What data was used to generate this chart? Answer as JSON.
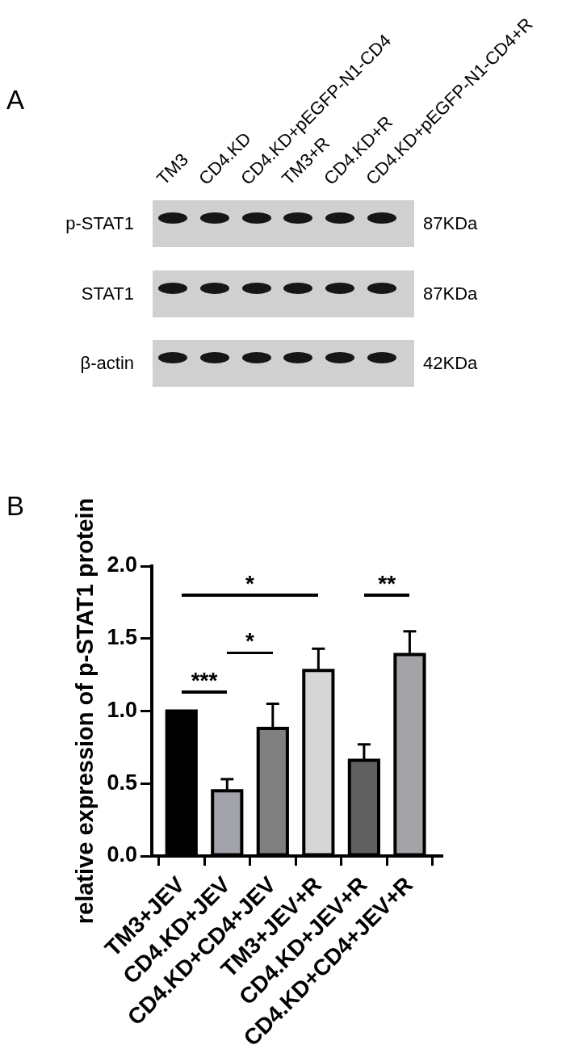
{
  "chart_data": [
    {
      "type": "other",
      "title": "A",
      "categories": [
        "TM3",
        "CD4.KD",
        "CD4.KD+pEGFP-N1-CD4",
        "TM3+R",
        "CD4.KD+R",
        "CD4.KD+pEGFP-N1-CD4+R"
      ],
      "y_categories": [
        "p-STAT1",
        "STAT1",
        "β-actin"
      ],
      "y2_categories": [
        "87KDa",
        "87KDa",
        "42KDa"
      ]
    },
    {
      "type": "bar",
      "title": "B",
      "ylabel": "relative expression of p-STAT1 protein",
      "categories": [
        "TM3+JEV",
        "CD4.KD+JEV",
        "CD4.KD+CD4+JEV",
        "TM3+JEV+R",
        "CD4.KD+JEV+R",
        "CD4.KD+CD4+JEV+R"
      ],
      "values": [
        1.0,
        0.45,
        0.88,
        1.28,
        0.66,
        1.39
      ],
      "colors": [
        "#000000",
        "#a2a2aa",
        "#808080",
        "#d6d6d6",
        "#606060",
        "#a4a4a8"
      ],
      "errors": [
        null,
        [
          0.45,
          0.53
        ],
        [
          0.88,
          1.05
        ],
        [
          1.28,
          1.43
        ],
        [
          0.66,
          0.77
        ],
        [
          1.39,
          1.55
        ]
      ],
      "ylim": [
        0,
        2
      ],
      "yticks": [
        {
          "value": 0,
          "label": "0.0"
        },
        0.5,
        {
          "value": 1,
          "label": "1.0"
        },
        1.5,
        {
          "value": 2,
          "label": "2.0"
        }
      ],
      "annotations": [
        "***",
        "*",
        "*",
        "**"
      ]
    }
  ]
}
